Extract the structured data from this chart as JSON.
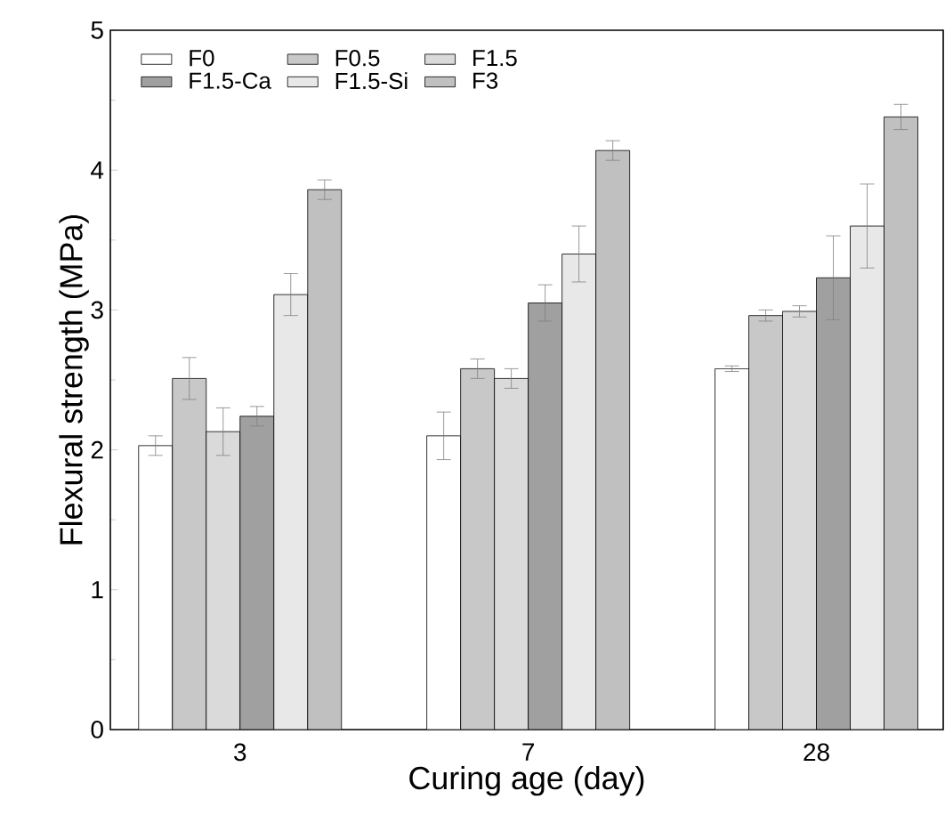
{
  "chart_data": {
    "type": "bar",
    "xlabel": "Curing age (day)",
    "ylabel": "Flexural strength (MPa)",
    "categories": [
      "3",
      "7",
      "28"
    ],
    "ylim": [
      0,
      5
    ],
    "yticks": [
      0,
      1,
      2,
      3,
      4,
      5
    ],
    "legend": "top left",
    "series": [
      {
        "name": "F0",
        "color": "#ffffff",
        "values": [
          2.03,
          2.1,
          2.58
        ],
        "errors": [
          0.07,
          0.17,
          0.02
        ]
      },
      {
        "name": "F0.5",
        "color": "#c8c8c8",
        "values": [
          2.51,
          2.58,
          2.96
        ],
        "errors": [
          0.15,
          0.07,
          0.04
        ]
      },
      {
        "name": "F1.5",
        "color": "#dadada",
        "values": [
          2.13,
          2.51,
          2.99
        ],
        "errors": [
          0.17,
          0.07,
          0.04
        ]
      },
      {
        "name": "F1.5-Ca",
        "color": "#a0a0a0",
        "values": [
          2.24,
          3.05,
          3.23
        ],
        "errors": [
          0.07,
          0.13,
          0.3
        ]
      },
      {
        "name": "F1.5-Si",
        "color": "#e8e8e8",
        "values": [
          3.11,
          3.4,
          3.6
        ],
        "errors": [
          0.15,
          0.2,
          0.3
        ]
      },
      {
        "name": "F3",
        "color": "#c0c0c0",
        "values": [
          3.86,
          4.14,
          4.38
        ],
        "errors": [
          0.07,
          0.07,
          0.09
        ]
      }
    ]
  }
}
